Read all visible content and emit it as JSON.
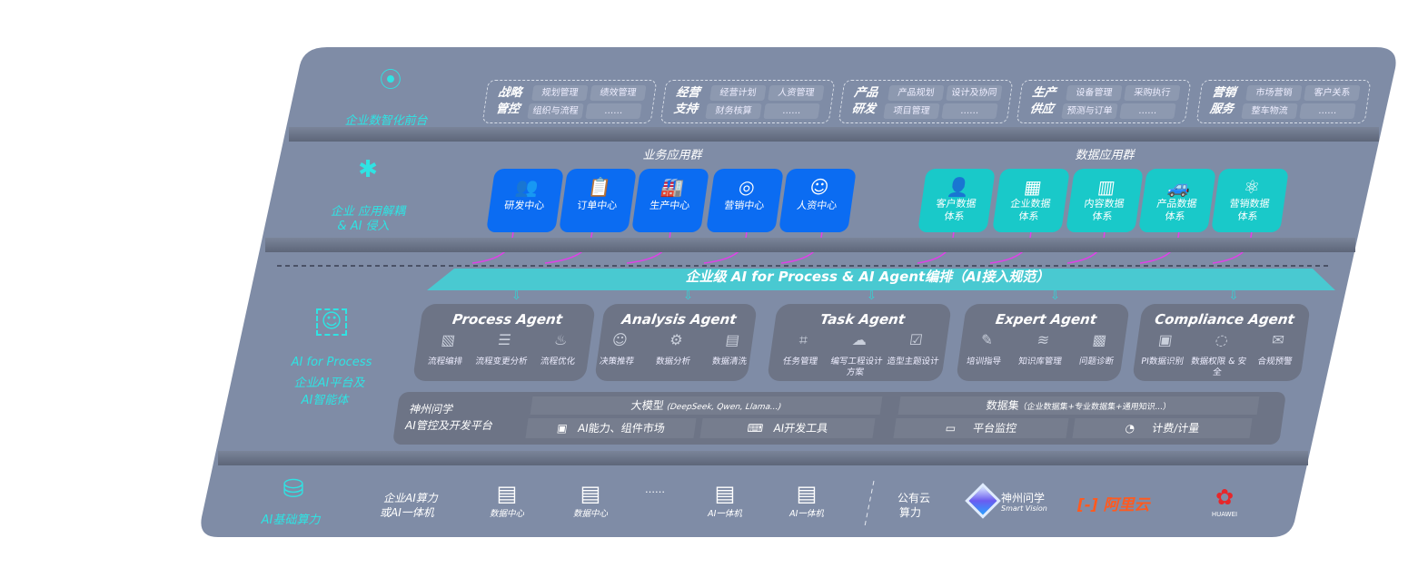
{
  "layer1": {
    "label": "企业数智化前台",
    "groups": [
      {
        "title": "战略管控",
        "items": [
          "规划管理",
          "绩效管理",
          "组织与流程",
          "……"
        ]
      },
      {
        "title": "经营支持",
        "items": [
          "经营计划",
          "人资管理",
          "财务核算",
          "……"
        ]
      },
      {
        "title": "产品研发",
        "items": [
          "产品规划",
          "设计及协同",
          "项目管理",
          "……"
        ]
      },
      {
        "title": "生产供应",
        "items": [
          "设备管理",
          "采购执行",
          "预测与订单",
          "……"
        ]
      },
      {
        "title": "营销服务",
        "items": [
          "市场营销",
          "客户关系",
          "整车物流",
          "……"
        ]
      }
    ]
  },
  "layer2": {
    "label1": "企业 应用解耦",
    "label2": "& AI 侵入",
    "business_title": "业务应用群",
    "business": [
      {
        "label": "研发中心",
        "icon": "users-icon"
      },
      {
        "label": "订单中心",
        "icon": "clipboard-icon"
      },
      {
        "label": "生产中心",
        "icon": "factory-icon"
      },
      {
        "label": "营销中心",
        "icon": "target-icon"
      },
      {
        "label": "人资中心",
        "icon": "person-icon"
      }
    ],
    "data_title": "数据应用群",
    "data": [
      {
        "l1": "客户数据",
        "l2": "体系",
        "icon": "user-icon"
      },
      {
        "l1": "企业数据",
        "l2": "体系",
        "icon": "building-icon"
      },
      {
        "l1": "内容数据",
        "l2": "体系",
        "icon": "books-icon"
      },
      {
        "l1": "产品数据",
        "l2": "体系",
        "icon": "car-icon"
      },
      {
        "l1": "营销数据",
        "l2": "体系",
        "icon": "atom-icon"
      }
    ]
  },
  "banner": "企业级 AI for Process & AI Agent编排（AI接入规范）",
  "layer3": {
    "label1": "AI for Process",
    "label2": "企业AI平台及",
    "label3": "AI智能体",
    "agents": [
      {
        "title": "Process Agent",
        "items": [
          "流程编排",
          "流程变更分析",
          "流程优化"
        ]
      },
      {
        "title": "Analysis Agent",
        "items": [
          "决策推荐",
          "数据分析",
          "数据清洗"
        ]
      },
      {
        "title": "Task Agent",
        "items": [
          "任务管理",
          "编写工程设计方案",
          "造型主题设计"
        ]
      },
      {
        "title": "Expert Agent",
        "items": [
          "培训指导",
          "知识库管理",
          "问题诊断"
        ]
      },
      {
        "title": "Compliance Agent",
        "items": [
          "PI数据识别",
          "数据权限 & 安全",
          "合规预警"
        ]
      }
    ],
    "platform": {
      "name1": "神州问学",
      "name2": "AI管控及开发平台",
      "model": "大模型",
      "model_note": "(DeepSeek, Qwen, Llama...)",
      "market": "AI能力、组件市场",
      "devtools": "AI开发工具",
      "dataset": "数据集",
      "dataset_note": "（企业数据集+专业数据集+通用知识...）",
      "monitor": "平台监控",
      "billing": "计费/计量"
    }
  },
  "layer4": {
    "label": "AI基础算力",
    "enterprise1": "企业AI算力",
    "enterprise2": "或AI一体机",
    "nodes": [
      "数据中心",
      "数据中心",
      "AI一体机",
      "AI一体机"
    ],
    "ellipsis": "……",
    "public1": "公有云",
    "public2": "算力",
    "vendors": [
      {
        "name": "神州问学",
        "sub": "Smart Vision"
      },
      {
        "name": "阿里云"
      },
      {
        "name": "HUAWEI"
      }
    ]
  },
  "colors": {
    "panel": "#7f8ca6",
    "blue": "#0b6cf2",
    "teal": "#19c9c9",
    "cyan": "#2fe3e3",
    "card": "#6d7486",
    "link": "#e040e8",
    "aliyun": "#ff5a1f",
    "huawei": "#e8262a"
  }
}
